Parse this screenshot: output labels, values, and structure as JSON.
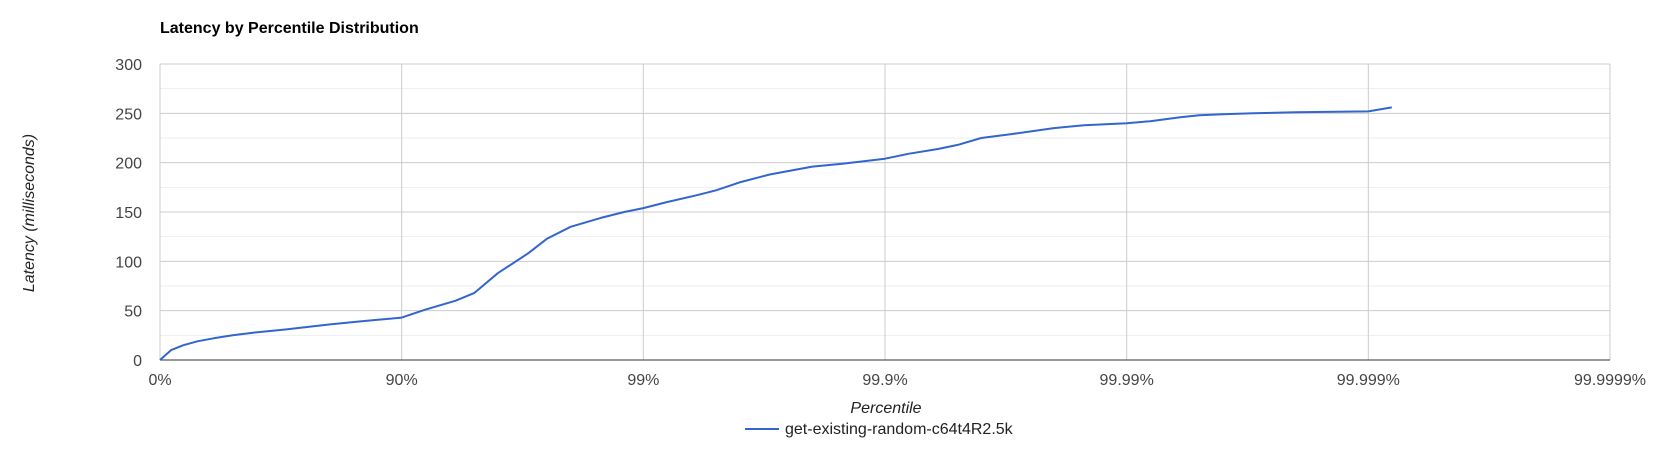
{
  "chart_data": {
    "type": "line",
    "title": "Latency by Percentile Distribution",
    "xlabel": "Percentile",
    "ylabel": "Latency (milliseconds)",
    "x_scale": "percentile-log",
    "x_tick_labels": [
      "0%",
      "90%",
      "99%",
      "99.9%",
      "99.99%",
      "99.999%",
      "99.9999%"
    ],
    "x_tick_values": [
      0,
      90,
      99,
      99.9,
      99.99,
      99.999,
      99.9999
    ],
    "y_ticks": [
      0,
      50,
      100,
      150,
      200,
      250,
      300
    ],
    "ylim": [
      0,
      300
    ],
    "grid": true,
    "minor_y_gridlines": true,
    "legend_position": "bottom",
    "series": [
      {
        "name": "get-existing-random-c64t4R2.5k",
        "color": "#3366cc",
        "x": [
          0,
          10,
          20,
          30,
          40,
          50,
          60,
          70,
          80,
          85,
          90,
          92,
          94,
          95,
          96,
          97,
          97.5,
          98,
          98.5,
          98.8,
          99,
          99.2,
          99.4,
          99.5,
          99.6,
          99.7,
          99.8,
          99.85,
          99.9,
          99.92,
          99.94,
          99.95,
          99.96,
          99.97,
          99.98,
          99.985,
          99.99,
          99.992,
          99.994,
          99.995,
          99.996,
          99.997,
          99.998,
          99.999,
          99.9992
        ],
        "y": [
          0,
          10,
          15,
          19,
          22,
          25,
          28,
          31,
          36,
          39,
          43,
          51,
          60,
          68,
          88,
          108,
          123,
          135,
          144,
          150,
          154,
          160,
          167,
          172,
          180,
          188,
          196,
          199,
          204,
          209,
          214,
          218,
          225,
          229,
          235,
          238,
          240,
          242,
          246,
          248,
          249,
          250,
          251,
          252,
          256
        ]
      }
    ]
  }
}
